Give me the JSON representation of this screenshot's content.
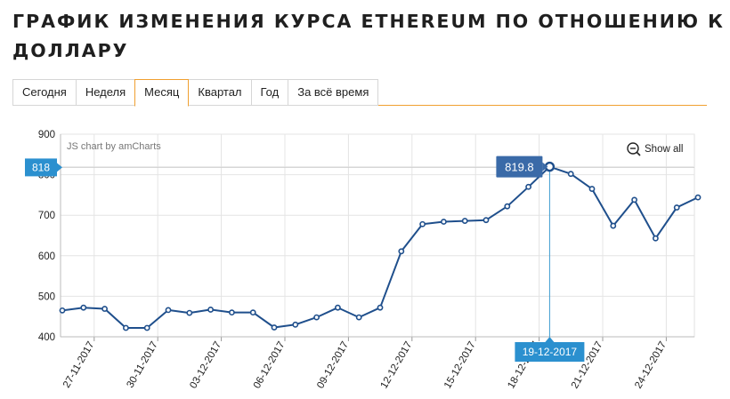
{
  "page": {
    "title": "ГРАФИК ИЗМЕНЕНИЯ КУРСА ETHEREUM ПО ОТНОШЕНИЮ К ДОЛЛАРУ"
  },
  "tabs": [
    {
      "label": "Сегодня",
      "active": false
    },
    {
      "label": "Неделя",
      "active": false
    },
    {
      "label": "Месяц",
      "active": true
    },
    {
      "label": "Квартал",
      "active": false
    },
    {
      "label": "Год",
      "active": false
    },
    {
      "label": "За всё время",
      "active": false
    }
  ],
  "chart_controls": {
    "credit": "JS chart by amCharts",
    "show_all_label": "Show all",
    "zoom_out_icon": "zoom-out-icon"
  },
  "colors": {
    "line": "#1f4f8c",
    "cursor": "#3d9bd0",
    "balloon_value": "#3a6aa8",
    "axis_badge": "#2b90cf",
    "tab_accent": "#f0a030"
  },
  "chart_data": {
    "type": "line",
    "title": "",
    "xlabel": "",
    "ylabel": "",
    "ylim": [
      400,
      900
    ],
    "yticks": [
      400,
      500,
      600,
      700,
      800,
      900
    ],
    "xtick_labels": [
      "27-11-2017",
      "30-11-2017",
      "03-12-2017",
      "06-12-2017",
      "09-12-2017",
      "12-12-2017",
      "15-12-2017",
      "18-12-2017",
      "21-12-2017",
      "24-12-2017"
    ],
    "x": [
      "26-11-2017",
      "27-11-2017",
      "28-11-2017",
      "29-11-2017",
      "30-11-2017",
      "01-12-2017",
      "02-12-2017",
      "03-12-2017",
      "04-12-2017",
      "05-12-2017",
      "06-12-2017",
      "07-12-2017",
      "08-12-2017",
      "09-12-2017",
      "10-12-2017",
      "11-12-2017",
      "12-12-2017",
      "13-12-2017",
      "14-12-2017",
      "15-12-2017",
      "16-12-2017",
      "17-12-2017",
      "18-12-2017",
      "19-12-2017",
      "20-12-2017",
      "21-12-2017",
      "22-12-2017",
      "23-12-2017",
      "24-12-2017",
      "25-12-2017",
      "26-12-2017"
    ],
    "values": [
      465,
      472,
      469,
      422,
      422,
      466,
      459,
      467,
      460,
      460,
      423,
      430,
      448,
      472,
      448,
      472,
      611,
      678,
      684,
      686,
      688,
      722,
      770,
      819.8,
      802,
      765,
      674,
      738,
      643,
      719,
      744
    ],
    "cursor": {
      "date": "19-12-2017",
      "value": 819.8,
      "y_axis_value": 818
    },
    "grid": true
  }
}
